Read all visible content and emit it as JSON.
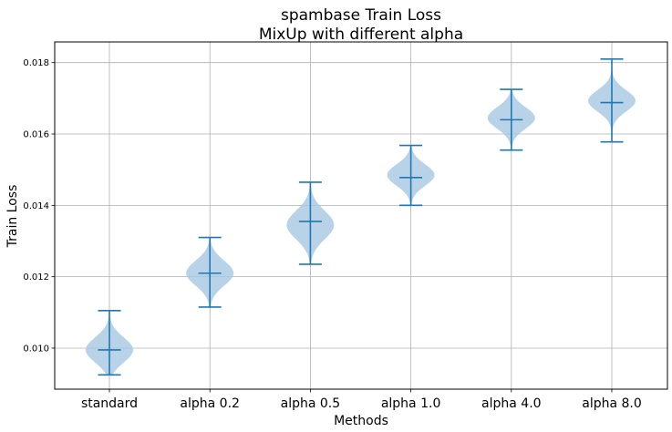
{
  "chart_data": {
    "type": "violin",
    "title": "spambase Train Loss",
    "subtitle": "MixUp with different alpha",
    "xlabel": "Methods",
    "ylabel": "Train Loss",
    "categories": [
      "standard",
      "alpha 0.2",
      "alpha 0.5",
      "alpha 1.0",
      "alpha 4.0",
      "alpha 8.0"
    ],
    "yticks": [
      0.01,
      0.012,
      0.014,
      0.016,
      0.018
    ],
    "ytick_labels": [
      "0.010",
      "0.012",
      "0.014",
      "0.016",
      "0.018"
    ],
    "ylim": [
      0.00885,
      0.01858
    ],
    "grid": true,
    "color": "#1f77b4",
    "body_color": "#a6c8e2",
    "series": [
      {
        "min": 0.00925,
        "median": 0.00995,
        "max": 0.01105,
        "mode": 0.00995,
        "spread": 0.00035
      },
      {
        "min": 0.01115,
        "median": 0.0121,
        "max": 0.0131,
        "mode": 0.0121,
        "spread": 0.00035
      },
      {
        "min": 0.01235,
        "median": 0.01355,
        "max": 0.01465,
        "mode": 0.01345,
        "spread": 0.0004
      },
      {
        "min": 0.014,
        "median": 0.01478,
        "max": 0.01568,
        "mode": 0.01485,
        "spread": 0.0003
      },
      {
        "min": 0.01555,
        "median": 0.0164,
        "max": 0.01725,
        "mode": 0.01645,
        "spread": 0.0003
      },
      {
        "min": 0.01578,
        "median": 0.01688,
        "max": 0.0181,
        "mode": 0.01693,
        "spread": 0.0003
      }
    ]
  }
}
